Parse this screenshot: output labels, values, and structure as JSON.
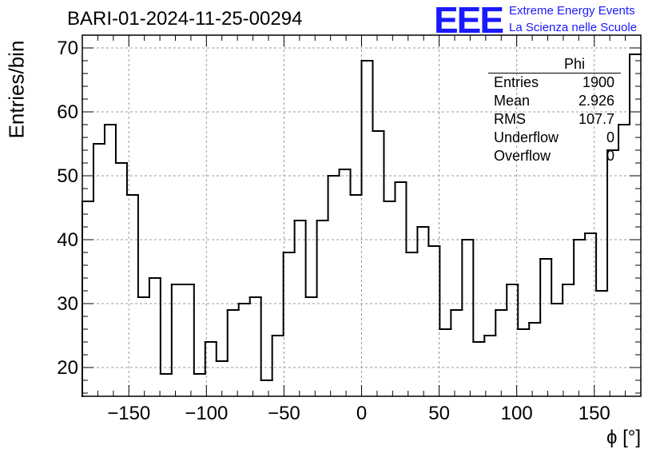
{
  "title": "BARI-01-2024-11-25-00294",
  "logo": {
    "mark": "EEE",
    "line1": "Extreme Energy Events",
    "line2": "La Scienza nelle Scuole",
    "color": "#1a1aff"
  },
  "stats": {
    "name": "Phi",
    "rows": [
      {
        "label": "Entries",
        "value": "1900"
      },
      {
        "label": "Mean",
        "value": "2.926"
      },
      {
        "label": "RMS",
        "value": "107.7"
      },
      {
        "label": "Underflow",
        "value": "0"
      },
      {
        "label": "Overflow",
        "value": "0"
      }
    ]
  },
  "chart_data": {
    "type": "histogram",
    "title": "BARI-01-2024-11-25-00294",
    "xlabel": "ϕ [°]",
    "ylabel": "Entries/bin",
    "xlim": [
      -180,
      180
    ],
    "ylim": [
      15.5,
      72
    ],
    "bin_width": 7.2,
    "bin_edges_start": -180,
    "values": [
      46,
      55,
      58,
      52,
      47,
      31,
      34,
      19,
      33,
      33,
      19,
      24,
      21,
      29,
      30,
      31,
      18,
      25,
      38,
      43,
      31,
      43,
      50,
      51,
      47,
      68,
      57,
      46,
      49,
      38,
      42,
      39,
      26,
      29,
      40,
      24,
      25,
      29,
      33,
      26,
      27,
      37,
      30,
      33,
      40,
      41,
      32,
      54,
      58,
      69
    ],
    "x_ticks": [
      -150,
      -100,
      -50,
      0,
      50,
      100,
      150
    ],
    "x_tick_labels": [
      "−150",
      "−100",
      "−50",
      "0",
      "50",
      "100",
      "150"
    ],
    "y_ticks": [
      20,
      30,
      40,
      50,
      60,
      70
    ],
    "y_tick_labels": [
      "20",
      "30",
      "40",
      "50",
      "60",
      "70"
    ],
    "grid": true,
    "line_color": "#000000",
    "grid_color": "#999999"
  }
}
